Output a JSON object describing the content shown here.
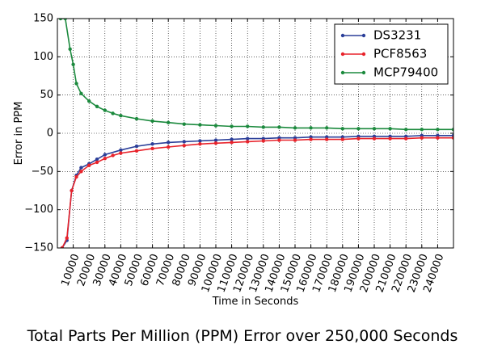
{
  "caption": "Total Parts Per Million (PPM) Error over 250,000 Seconds",
  "chart_data": {
    "type": "line",
    "title": "",
    "xlabel": "Time in Seconds",
    "ylabel": "Error in PPM",
    "xlim": [
      0,
      250000
    ],
    "ylim": [
      -150,
      150
    ],
    "x_ticks": [
      10000,
      20000,
      30000,
      40000,
      50000,
      60000,
      70000,
      80000,
      90000,
      100000,
      110000,
      120000,
      130000,
      140000,
      150000,
      160000,
      170000,
      180000,
      190000,
      200000,
      210000,
      220000,
      230000,
      240000
    ],
    "x_tick_labels": [
      "10000",
      "20000",
      "30000",
      "40000",
      "50000",
      "60000",
      "70000",
      "80000",
      "90000",
      "100000",
      "110000",
      "120000",
      "130000",
      "140000",
      "150000",
      "160000",
      "170000",
      "180000",
      "190000",
      "200000",
      "210000",
      "220000",
      "230000",
      "240000"
    ],
    "y_ticks": [
      -150,
      -100,
      -50,
      0,
      50,
      100,
      150
    ],
    "y_tick_labels": [
      "−150",
      "−100",
      "−50",
      "0",
      "50",
      "100",
      "150"
    ],
    "grid": true,
    "legend_position": "top-right",
    "series": [
      {
        "name": "DS3231",
        "color": "#2b3f99",
        "x": [
          3000,
          6000,
          9000,
          12000,
          15000,
          20000,
          25000,
          30000,
          40000,
          50000,
          60000,
          70000,
          80000,
          90000,
          100000,
          110000,
          120000,
          130000,
          140000,
          150000,
          160000,
          170000,
          180000,
          190000,
          200000,
          210000,
          220000,
          230000,
          240000,
          250000
        ],
        "y": [
          -150,
          -140,
          -75,
          -55,
          -45,
          -40,
          -34,
          -28,
          -22,
          -17,
          -14,
          -12,
          -11,
          -10,
          -9,
          -8,
          -7,
          -7,
          -6,
          -6,
          -5,
          -5,
          -5,
          -4,
          -4,
          -4,
          -4,
          -3,
          -3,
          -3
        ]
      },
      {
        "name": "PCF8563",
        "color": "#e8232b",
        "x": [
          3000,
          6000,
          9000,
          12000,
          15000,
          20000,
          25000,
          30000,
          35000,
          40000,
          50000,
          60000,
          70000,
          80000,
          90000,
          100000,
          110000,
          120000,
          130000,
          140000,
          150000,
          160000,
          170000,
          180000,
          190000,
          200000,
          210000,
          220000,
          230000,
          240000,
          250000
        ],
        "y": [
          -150,
          -137,
          -75,
          -57,
          -50,
          -42,
          -38,
          -33,
          -29,
          -26,
          -23,
          -20,
          -18,
          -16,
          -14,
          -13,
          -12,
          -11,
          -10,
          -9,
          -9,
          -8,
          -8,
          -8,
          -7,
          -7,
          -7,
          -7,
          -6,
          -6,
          -6
        ]
      },
      {
        "name": "MCP79400",
        "color": "#1c8a3e",
        "x": [
          2000,
          5000,
          8000,
          10000,
          12000,
          15000,
          20000,
          25000,
          30000,
          35000,
          40000,
          50000,
          60000,
          70000,
          80000,
          90000,
          100000,
          110000,
          120000,
          130000,
          140000,
          150000,
          160000,
          170000,
          180000,
          190000,
          200000,
          210000,
          220000,
          230000,
          240000,
          250000
        ],
        "y": [
          150,
          150,
          110,
          90,
          65,
          52,
          42,
          35,
          30,
          26,
          23,
          19,
          16,
          14,
          12,
          11,
          10,
          9,
          9,
          8,
          8,
          7,
          7,
          7,
          6,
          6,
          6,
          6,
          5,
          5,
          5,
          5
        ]
      }
    ]
  }
}
